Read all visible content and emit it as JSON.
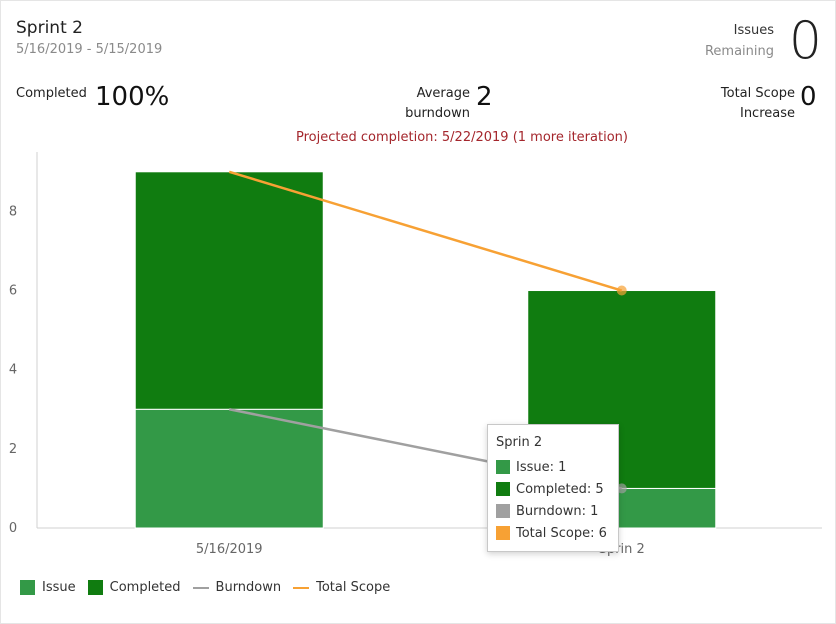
{
  "header": {
    "title": "Sprint 2",
    "date_range": "5/16/2019 - 5/15/2019",
    "issues_label_line1": "Issues",
    "issues_label_line2": "Remaining",
    "issues_value": "0"
  },
  "stats": {
    "completed_label": "Completed",
    "completed_value": "100%",
    "avg_label_line1": "Average",
    "avg_label_line2": "burndown",
    "avg_value": "2",
    "scope_label_line1": "Total Scope",
    "scope_label_line2": "Increase",
    "scope_value": "0"
  },
  "projection": "Projected completion: 5/22/2019 (1 more iteration)",
  "colors": {
    "issue": "#339947",
    "completed": "#107c10",
    "burndown": "#a0a0a0",
    "total_scope": "#f7a134",
    "axis": "#d0d0d0"
  },
  "chart_data": {
    "type": "bar",
    "stacked": true,
    "categories": [
      "5/16/2019",
      "Sprin 2"
    ],
    "series": [
      {
        "name": "Issue",
        "kind": "bar",
        "color": "#339947",
        "values": [
          3,
          1
        ]
      },
      {
        "name": "Completed",
        "kind": "bar",
        "color": "#107c10",
        "values": [
          6,
          5
        ]
      },
      {
        "name": "Burndown",
        "kind": "line",
        "color": "#a0a0a0",
        "values": [
          3,
          1
        ]
      },
      {
        "name": "Total Scope",
        "kind": "line",
        "color": "#f7a134",
        "values": [
          9,
          6
        ]
      }
    ],
    "yticks": [
      0,
      2,
      4,
      6,
      8
    ],
    "ylim": [
      0,
      9.5
    ],
    "grid": false,
    "legend_position": "bottom-left"
  },
  "tooltip": {
    "title": "Sprin 2",
    "rows": [
      {
        "label": "Issue: 1",
        "color": "#339947"
      },
      {
        "label": "Completed: 5",
        "color": "#107c10"
      },
      {
        "label": "Burndown: 1",
        "color": "#a0a0a0"
      },
      {
        "label": "Total Scope: 6",
        "color": "#f7a134"
      }
    ]
  },
  "legend": [
    {
      "label": "Issue",
      "kind": "square",
      "color": "#339947"
    },
    {
      "label": "Completed",
      "kind": "square",
      "color": "#107c10"
    },
    {
      "label": "Burndown",
      "kind": "line",
      "color": "#a0a0a0"
    },
    {
      "label": "Total Scope",
      "kind": "line",
      "color": "#f7a134"
    }
  ]
}
